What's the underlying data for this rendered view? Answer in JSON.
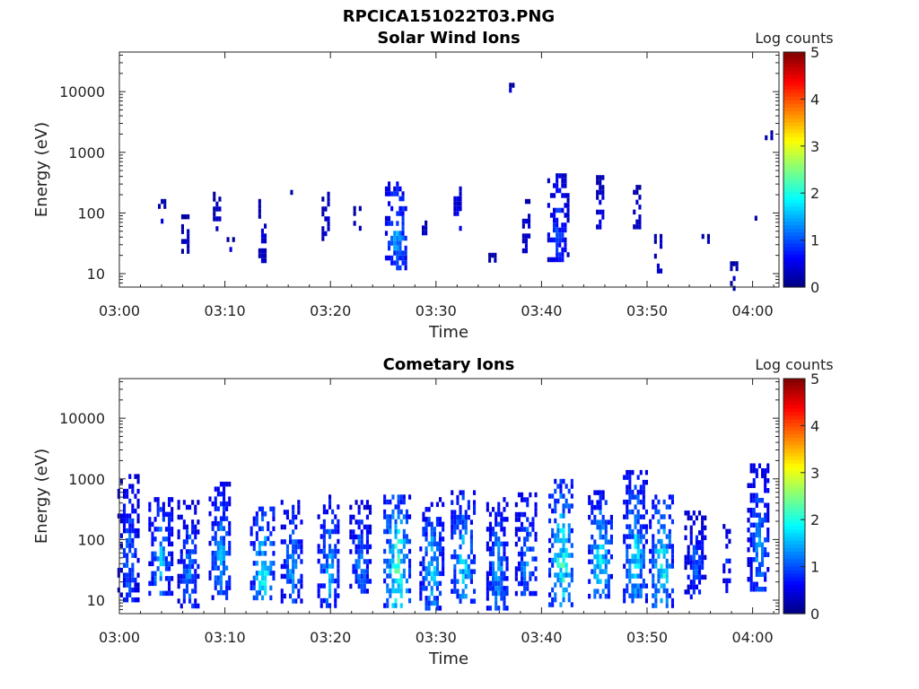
{
  "figure_title": "RPCICA151022T03.PNG",
  "colorbar": {
    "label": "Log counts",
    "ticks": [
      "5",
      "4",
      "3",
      "2",
      "1",
      "0"
    ],
    "range": [
      0,
      5
    ],
    "colormap": "jet",
    "colors": [
      "#00007f",
      "#0000ff",
      "#007fff",
      "#00ffff",
      "#7fff7f",
      "#ffff00",
      "#ff7f00",
      "#ff0000",
      "#7f0000"
    ]
  },
  "chart_data": [
    {
      "type": "heatmap",
      "title": "Solar Wind Ions",
      "xlabel": "Time",
      "ylabel": "Energy (eV)",
      "x_ticks": [
        "03:00",
        "03:10",
        "03:20",
        "03:30",
        "03:40",
        "03:50",
        "04:00"
      ],
      "y_ticks": [
        "10",
        "100",
        "1000",
        "10000"
      ],
      "y_scale": "log",
      "xlim_minutes": [
        0,
        62.5
      ],
      "ylim": [
        6,
        45000
      ],
      "clusters": [
        {
          "t": 4.0,
          "emin": 70,
          "emax": 170,
          "level": 0.6
        },
        {
          "t": 6.2,
          "emin": 25,
          "emax": 95,
          "level": 0.5
        },
        {
          "t": 9.2,
          "emin": 60,
          "emax": 270,
          "level": 0.5
        },
        {
          "t": 10.5,
          "emin": 25,
          "emax": 40,
          "level": 0.5
        },
        {
          "t": 13.5,
          "emin": 17,
          "emax": 170,
          "level": 0.6
        },
        {
          "t": 16.0,
          "emin": 200,
          "emax": 240,
          "level": 0.5
        },
        {
          "t": 19.5,
          "emin": 35,
          "emax": 270,
          "level": 0.6
        },
        {
          "t": 22.5,
          "emin": 60,
          "emax": 130,
          "level": 0.5
        },
        {
          "t": 26.2,
          "emin": 12,
          "emax": 330,
          "level": 1.6
        },
        {
          "t": 29.0,
          "emin": 45,
          "emax": 75,
          "level": 0.5
        },
        {
          "t": 32.0,
          "emin": 60,
          "emax": 330,
          "level": 0.8
        },
        {
          "t": 35.3,
          "emin": 18,
          "emax": 22,
          "level": 0.5
        },
        {
          "t": 37.0,
          "emin": 10000,
          "emax": 14000,
          "level": 0.5
        },
        {
          "t": 38.5,
          "emin": 25,
          "emax": 170,
          "level": 0.6
        },
        {
          "t": 41.5,
          "emin": 18,
          "emax": 450,
          "level": 1.1
        },
        {
          "t": 45.5,
          "emin": 55,
          "emax": 420,
          "level": 0.7
        },
        {
          "t": 49.0,
          "emin": 60,
          "emax": 290,
          "level": 0.6
        },
        {
          "t": 51.0,
          "emin": 12,
          "emax": 45,
          "level": 0.7
        },
        {
          "t": 55.5,
          "emin": 35,
          "emax": 45,
          "level": 0.5
        },
        {
          "t": 58.2,
          "emin": 6,
          "emax": 16,
          "level": 0.5
        },
        {
          "t": 60.0,
          "emin": 75,
          "emax": 90,
          "level": 0.5
        },
        {
          "t": 61.5,
          "emin": 1800,
          "emax": 2300,
          "level": 0.5
        }
      ]
    },
    {
      "type": "heatmap",
      "title": "Cometary Ions",
      "xlabel": "Time",
      "ylabel": "Energy (eV)",
      "x_ticks": [
        "03:00",
        "03:10",
        "03:20",
        "03:30",
        "03:40",
        "03:50",
        "04:00"
      ],
      "y_ticks": [
        "10",
        "100",
        "1000",
        "10000"
      ],
      "y_scale": "log",
      "xlim_minutes": [
        0,
        62.5
      ],
      "ylim": [
        6,
        45000
      ],
      "clusters": [
        {
          "t": 0.8,
          "emin": 10,
          "emax": 1200,
          "level": 1.3
        },
        {
          "t": 3.8,
          "emin": 12,
          "emax": 500,
          "level": 1.7
        },
        {
          "t": 6.5,
          "emin": 8,
          "emax": 450,
          "level": 1.4
        },
        {
          "t": 9.5,
          "emin": 12,
          "emax": 900,
          "level": 1.6
        },
        {
          "t": 13.5,
          "emin": 10,
          "emax": 350,
          "level": 2.1
        },
        {
          "t": 16.3,
          "emin": 10,
          "emax": 450,
          "level": 1.5
        },
        {
          "t": 19.8,
          "emin": 8,
          "emax": 550,
          "level": 1.6
        },
        {
          "t": 22.8,
          "emin": 15,
          "emax": 450,
          "level": 1.4
        },
        {
          "t": 26.2,
          "emin": 8,
          "emax": 550,
          "level": 2.5
        },
        {
          "t": 29.5,
          "emin": 8,
          "emax": 500,
          "level": 1.8
        },
        {
          "t": 32.5,
          "emin": 10,
          "emax": 650,
          "level": 2.0
        },
        {
          "t": 35.8,
          "emin": 8,
          "emax": 500,
          "level": 1.6
        },
        {
          "t": 38.5,
          "emin": 12,
          "emax": 600,
          "level": 1.5
        },
        {
          "t": 41.8,
          "emin": 8,
          "emax": 1000,
          "level": 2.3
        },
        {
          "t": 45.5,
          "emin": 12,
          "emax": 650,
          "level": 2.0
        },
        {
          "t": 48.8,
          "emin": 10,
          "emax": 1400,
          "level": 1.9
        },
        {
          "t": 51.3,
          "emin": 8,
          "emax": 550,
          "level": 2.1
        },
        {
          "t": 54.5,
          "emin": 12,
          "emax": 300,
          "level": 1.2
        },
        {
          "t": 57.5,
          "emin": 15,
          "emax": 180,
          "level": 1.0
        },
        {
          "t": 60.5,
          "emin": 15,
          "emax": 1800,
          "level": 1.5
        }
      ]
    }
  ]
}
